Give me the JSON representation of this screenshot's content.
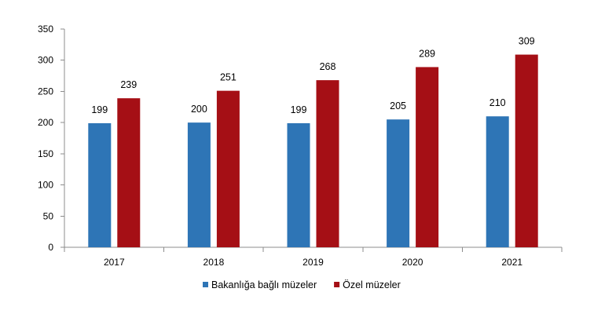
{
  "chart_data": {
    "type": "bar",
    "categories": [
      "2017",
      "2018",
      "2019",
      "2020",
      "2021"
    ],
    "series": [
      {
        "name": "Bakanlığa bağlı müzeler",
        "values": [
          199,
          200,
          199,
          205,
          210
        ],
        "color": "#2e75b6"
      },
      {
        "name": "Özel müzeler",
        "values": [
          239,
          251,
          268,
          289,
          309
        ],
        "color": "#a50f15"
      }
    ],
    "ylim": [
      0,
      350
    ],
    "yticks": [
      0,
      50,
      100,
      150,
      200,
      250,
      300,
      350
    ],
    "grid": false,
    "legend_position": "bottom-center",
    "data_labels": true
  }
}
